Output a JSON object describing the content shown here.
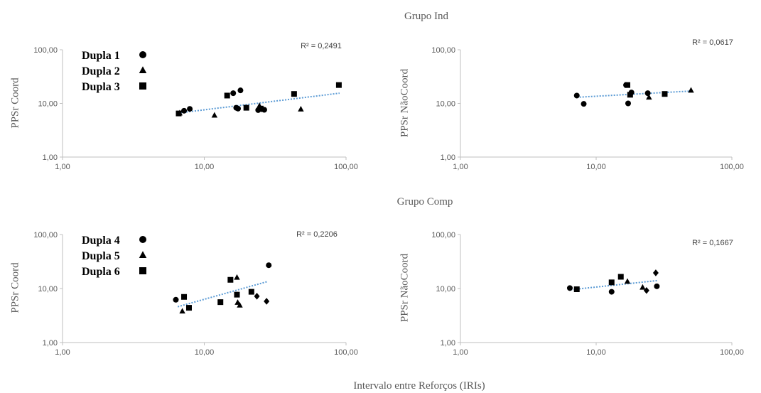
{
  "figure": {
    "group_titles": [
      "Grupo  Ind",
      "Grupo  Comp"
    ],
    "common_xlabel": "Intervalo entre Reforços (IRIs)"
  },
  "chart_data": [
    {
      "type": "scatter",
      "group": "Grupo  Ind",
      "ylabel": "PPSr Coord",
      "xscale": "log",
      "yscale": "log",
      "xlim": [
        1,
        100
      ],
      "ylim": [
        1,
        100
      ],
      "xticks": [
        "1,00",
        "10,00",
        "100,00"
      ],
      "yticks": [
        "1,00",
        "10,00",
        "100,00"
      ],
      "r2_label": "R² = 0,2491",
      "trendline": {
        "x": [
          6.5,
          90
        ],
        "y": [
          6.6,
          15.5
        ]
      },
      "legend": {
        "placement": "top-left",
        "entries": [
          {
            "label": "Dupla 1",
            "marker": "circle"
          },
          {
            "label": "Dupla 2",
            "marker": "triangle"
          },
          {
            "label": "Dupla 3",
            "marker": "square"
          }
        ]
      },
      "series": [
        {
          "label": "Dupla 1",
          "marker": "circle",
          "points": [
            [
              7.2,
              7.3
            ],
            [
              7.9,
              7.9
            ],
            [
              16.0,
              15.5
            ],
            [
              16.8,
              8.3
            ],
            [
              17.3,
              8.0
            ],
            [
              18.0,
              17.5
            ],
            [
              24.0,
              7.5
            ],
            [
              25.5,
              7.8
            ],
            [
              26.5,
              7.6
            ]
          ]
        },
        {
          "label": "Dupla 2",
          "marker": "triangle",
          "points": [
            [
              6.7,
              6.6
            ],
            [
              11.8,
              6.0
            ],
            [
              24.5,
              9.0
            ],
            [
              48.0,
              7.8
            ]
          ]
        },
        {
          "label": "Dupla 3",
          "marker": "square",
          "points": [
            [
              6.6,
              6.5
            ],
            [
              14.5,
              14.0
            ],
            [
              19.8,
              8.3
            ],
            [
              25.0,
              8.0
            ],
            [
              43.0,
              15.0
            ],
            [
              89.0,
              22.0
            ]
          ]
        }
      ]
    },
    {
      "type": "scatter",
      "group": "Grupo  Ind",
      "ylabel": "PPSr NãoCoord",
      "xscale": "log",
      "yscale": "log",
      "xlim": [
        1,
        100
      ],
      "ylim": [
        1,
        100
      ],
      "xticks": [
        "1,00",
        "10,00",
        "100,00"
      ],
      "yticks": [
        "1,00",
        "10,00",
        "100,00"
      ],
      "r2_label": "R² = 0,0617",
      "trendline": {
        "x": [
          7.2,
          50
        ],
        "y": [
          13.0,
          17.0
        ]
      },
      "series": [
        {
          "label": "Dupla 1",
          "marker": "circle",
          "points": [
            [
              7.2,
              14.0
            ],
            [
              8.1,
              9.8
            ],
            [
              16.6,
              22.0
            ],
            [
              17.2,
              10.0
            ],
            [
              18.2,
              16.0
            ],
            [
              24.0,
              15.5
            ]
          ]
        },
        {
          "label": "Dupla 2",
          "marker": "triangle",
          "points": [
            [
              24.5,
              13.0
            ],
            [
              50.0,
              17.5
            ]
          ]
        },
        {
          "label": "Dupla 3",
          "marker": "square",
          "points": [
            [
              17.0,
              22.0
            ],
            [
              17.8,
              14.5
            ],
            [
              32.0,
              15.0
            ]
          ]
        }
      ]
    },
    {
      "type": "scatter",
      "group": "Grupo  Comp",
      "ylabel": "PPSr Coord",
      "xscale": "log",
      "yscale": "log",
      "xlim": [
        1,
        100
      ],
      "ylim": [
        1,
        100
      ],
      "xticks": [
        "1,00",
        "10,00",
        "100,00"
      ],
      "yticks": [
        "1,00",
        "10,00",
        "100,00"
      ],
      "r2_label": "R² = 0,2206",
      "trendline": {
        "x": [
          6.5,
          28
        ],
        "y": [
          4.6,
          13.5
        ]
      },
      "legend": {
        "placement": "top-left",
        "entries": [
          {
            "label": "Dupla 4",
            "marker": "circle"
          },
          {
            "label": "Dupla 5",
            "marker": "triangle"
          },
          {
            "label": "Dupla 6",
            "marker": "square"
          }
        ]
      },
      "series": [
        {
          "label": "Dupla 4",
          "marker": "circle",
          "points": [
            [
              6.3,
              6.2
            ],
            [
              28.5,
              27.0
            ]
          ]
        },
        {
          "label": "Dupla 5",
          "marker": "triangle",
          "points": [
            [
              7.0,
              3.8
            ],
            [
              17.0,
              16.0
            ],
            [
              17.2,
              5.5
            ],
            [
              17.8,
              4.9
            ]
          ]
        },
        {
          "label": "Dupla 6",
          "marker": "square",
          "points": [
            [
              7.2,
              7.0
            ],
            [
              7.8,
              4.4
            ],
            [
              13.0,
              5.6
            ],
            [
              15.3,
              14.5
            ],
            [
              17.0,
              7.7
            ],
            [
              21.5,
              8.7
            ]
          ]
        },
        {
          "label": "",
          "marker": "diamond",
          "points": [
            [
              23.5,
              7.2
            ],
            [
              27.5,
              5.8
            ]
          ]
        }
      ]
    },
    {
      "type": "scatter",
      "group": "Grupo  Comp",
      "ylabel": "PPSr NãoCoord",
      "xscale": "log",
      "yscale": "log",
      "xlim": [
        1,
        100
      ],
      "ylim": [
        1,
        100
      ],
      "xticks": [
        "1,00",
        "10,00",
        "100,00"
      ],
      "yticks": [
        "1,00",
        "10,00",
        "100,00"
      ],
      "r2_label": "R² = 0,1667",
      "trendline": {
        "x": [
          6.5,
          28
        ],
        "y": [
          9.5,
          14.0
        ]
      },
      "series": [
        {
          "label": "Dupla 4",
          "marker": "circle",
          "points": [
            [
              6.4,
              10.2
            ],
            [
              13.0,
              8.7
            ],
            [
              28.0,
              11.0
            ]
          ]
        },
        {
          "label": "Dupla 5",
          "marker": "triangle",
          "points": [
            [
              17.0,
              13.5
            ],
            [
              22.0,
              10.5
            ]
          ]
        },
        {
          "label": "Dupla 6",
          "marker": "square",
          "points": [
            [
              7.2,
              9.7
            ],
            [
              13.0,
              13.0
            ],
            [
              15.2,
              16.5
            ]
          ]
        },
        {
          "label": "",
          "marker": "diamond",
          "points": [
            [
              23.5,
              9.2
            ],
            [
              27.5,
              19.5
            ]
          ]
        }
      ]
    }
  ]
}
